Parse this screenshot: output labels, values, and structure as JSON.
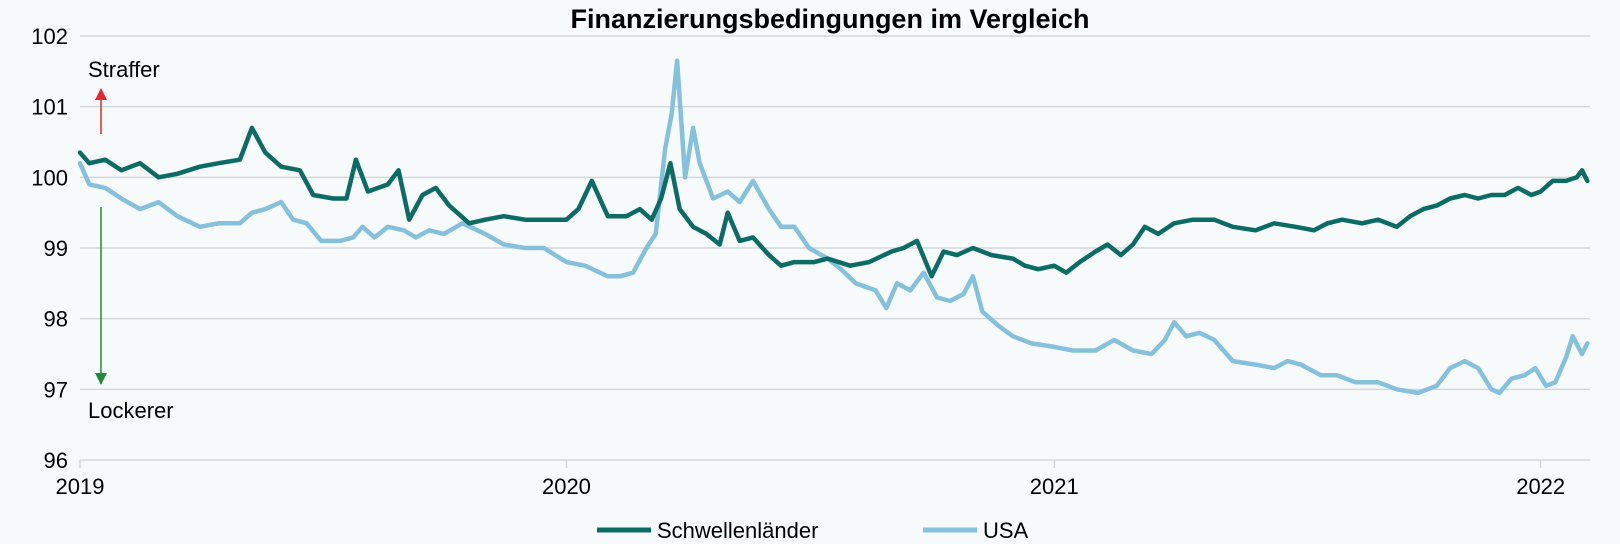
{
  "chart_data": {
    "type": "line",
    "title": "Finanzierungsbedingungen im Vergleich",
    "xlabel": "",
    "ylabel": "",
    "ylim": [
      96,
      102
    ],
    "yticks": [
      96,
      97,
      98,
      99,
      100,
      101,
      102
    ],
    "xlim": [
      "2019-01-01",
      "2022-02-07"
    ],
    "xticks": [
      {
        "date": "2019-01-01",
        "label": "2019"
      },
      {
        "date": "2020-01-01",
        "label": "2020"
      },
      {
        "date": "2021-01-01",
        "label": "2021"
      },
      {
        "date": "2022-01-01",
        "label": "2022"
      }
    ],
    "grid": true,
    "legend_placement": "bottom-center",
    "annotations": [
      {
        "text": "Straffer",
        "direction": "up",
        "color": "#e8262b"
      },
      {
        "text": "Lockerer",
        "direction": "down",
        "color": "#1f8a3c"
      }
    ],
    "series": [
      {
        "name": "Schwellenländer",
        "color": "#0d6b66",
        "points": [
          [
            "2019-01-01",
            100.35
          ],
          [
            "2019-01-08",
            100.2
          ],
          [
            "2019-01-20",
            100.25
          ],
          [
            "2019-02-01",
            100.1
          ],
          [
            "2019-02-15",
            100.2
          ],
          [
            "2019-03-01",
            100.0
          ],
          [
            "2019-03-15",
            100.05
          ],
          [
            "2019-04-01",
            100.15
          ],
          [
            "2019-04-15",
            100.2
          ],
          [
            "2019-05-01",
            100.25
          ],
          [
            "2019-05-10",
            100.7
          ],
          [
            "2019-05-20",
            100.35
          ],
          [
            "2019-06-01",
            100.15
          ],
          [
            "2019-06-15",
            100.1
          ],
          [
            "2019-06-25",
            99.75
          ],
          [
            "2019-07-10",
            99.7
          ],
          [
            "2019-07-20",
            99.7
          ],
          [
            "2019-07-27",
            100.25
          ],
          [
            "2019-08-05",
            99.8
          ],
          [
            "2019-08-20",
            99.9
          ],
          [
            "2019-08-28",
            100.1
          ],
          [
            "2019-09-05",
            99.4
          ],
          [
            "2019-09-15",
            99.75
          ],
          [
            "2019-09-25",
            99.85
          ],
          [
            "2019-10-05",
            99.6
          ],
          [
            "2019-10-20",
            99.35
          ],
          [
            "2019-11-01",
            99.4
          ],
          [
            "2019-11-15",
            99.45
          ],
          [
            "2019-12-01",
            99.4
          ],
          [
            "2019-12-15",
            99.4
          ],
          [
            "2020-01-01",
            99.4
          ],
          [
            "2020-01-10",
            99.55
          ],
          [
            "2020-01-20",
            99.95
          ],
          [
            "2020-02-01",
            99.45
          ],
          [
            "2020-02-15",
            99.45
          ],
          [
            "2020-02-25",
            99.55
          ],
          [
            "2020-03-05",
            99.4
          ],
          [
            "2020-03-12",
            99.7
          ],
          [
            "2020-03-19",
            100.2
          ],
          [
            "2020-03-26",
            99.55
          ],
          [
            "2020-04-05",
            99.3
          ],
          [
            "2020-04-15",
            99.2
          ],
          [
            "2020-04-25",
            99.05
          ],
          [
            "2020-05-01",
            99.5
          ],
          [
            "2020-05-10",
            99.1
          ],
          [
            "2020-05-20",
            99.15
          ],
          [
            "2020-06-01",
            98.9
          ],
          [
            "2020-06-10",
            98.75
          ],
          [
            "2020-06-20",
            98.8
          ],
          [
            "2020-07-05",
            98.8
          ],
          [
            "2020-07-15",
            98.85
          ],
          [
            "2020-08-01",
            98.75
          ],
          [
            "2020-08-15",
            98.8
          ],
          [
            "2020-09-01",
            98.95
          ],
          [
            "2020-09-10",
            99.0
          ],
          [
            "2020-09-20",
            99.1
          ],
          [
            "2020-10-01",
            98.6
          ],
          [
            "2020-10-10",
            98.95
          ],
          [
            "2020-10-20",
            98.9
          ],
          [
            "2020-11-01",
            99.0
          ],
          [
            "2020-11-15",
            98.9
          ],
          [
            "2020-12-01",
            98.85
          ],
          [
            "2020-12-10",
            98.75
          ],
          [
            "2020-12-20",
            98.7
          ],
          [
            "2021-01-01",
            98.75
          ],
          [
            "2021-01-10",
            98.65
          ],
          [
            "2021-01-20",
            98.8
          ],
          [
            "2021-02-01",
            98.95
          ],
          [
            "2021-02-10",
            99.05
          ],
          [
            "2021-02-20",
            98.9
          ],
          [
            "2021-03-01",
            99.05
          ],
          [
            "2021-03-10",
            99.3
          ],
          [
            "2021-03-20",
            99.2
          ],
          [
            "2021-04-01",
            99.35
          ],
          [
            "2021-04-15",
            99.4
          ],
          [
            "2021-05-01",
            99.4
          ],
          [
            "2021-05-15",
            99.3
          ],
          [
            "2021-06-01",
            99.25
          ],
          [
            "2021-06-15",
            99.35
          ],
          [
            "2021-07-01",
            99.3
          ],
          [
            "2021-07-15",
            99.25
          ],
          [
            "2021-07-25",
            99.35
          ],
          [
            "2021-08-05",
            99.4
          ],
          [
            "2021-08-20",
            99.35
          ],
          [
            "2021-09-01",
            99.4
          ],
          [
            "2021-09-15",
            99.3
          ],
          [
            "2021-09-25",
            99.45
          ],
          [
            "2021-10-05",
            99.55
          ],
          [
            "2021-10-15",
            99.6
          ],
          [
            "2021-10-25",
            99.7
          ],
          [
            "2021-11-05",
            99.75
          ],
          [
            "2021-11-15",
            99.7
          ],
          [
            "2021-11-25",
            99.75
          ],
          [
            "2021-12-05",
            99.75
          ],
          [
            "2021-12-15",
            99.85
          ],
          [
            "2021-12-25",
            99.75
          ],
          [
            "2022-01-01",
            99.8
          ],
          [
            "2022-01-10",
            99.95
          ],
          [
            "2022-01-20",
            99.95
          ],
          [
            "2022-01-28",
            100.0
          ],
          [
            "2022-02-01",
            100.1
          ],
          [
            "2022-02-05",
            99.95
          ]
        ]
      },
      {
        "name": "USA",
        "color": "#85c0dc",
        "points": [
          [
            "2019-01-01",
            100.2
          ],
          [
            "2019-01-08",
            99.9
          ],
          [
            "2019-01-20",
            99.85
          ],
          [
            "2019-02-01",
            99.7
          ],
          [
            "2019-02-15",
            99.55
          ],
          [
            "2019-03-01",
            99.65
          ],
          [
            "2019-03-15",
            99.45
          ],
          [
            "2019-04-01",
            99.3
          ],
          [
            "2019-04-15",
            99.35
          ],
          [
            "2019-05-01",
            99.35
          ],
          [
            "2019-05-10",
            99.5
          ],
          [
            "2019-05-20",
            99.55
          ],
          [
            "2019-06-01",
            99.65
          ],
          [
            "2019-06-10",
            99.4
          ],
          [
            "2019-06-20",
            99.35
          ],
          [
            "2019-07-01",
            99.1
          ],
          [
            "2019-07-15",
            99.1
          ],
          [
            "2019-07-25",
            99.15
          ],
          [
            "2019-08-01",
            99.3
          ],
          [
            "2019-08-10",
            99.15
          ],
          [
            "2019-08-20",
            99.3
          ],
          [
            "2019-09-01",
            99.25
          ],
          [
            "2019-09-10",
            99.15
          ],
          [
            "2019-09-20",
            99.25
          ],
          [
            "2019-10-01",
            99.2
          ],
          [
            "2019-10-15",
            99.35
          ],
          [
            "2019-11-01",
            99.2
          ],
          [
            "2019-11-15",
            99.05
          ],
          [
            "2019-12-01",
            99.0
          ],
          [
            "2019-12-15",
            99.0
          ],
          [
            "2020-01-01",
            98.8
          ],
          [
            "2020-01-15",
            98.75
          ],
          [
            "2020-02-01",
            98.6
          ],
          [
            "2020-02-10",
            98.6
          ],
          [
            "2020-02-20",
            98.65
          ],
          [
            "2020-03-01",
            99.0
          ],
          [
            "2020-03-08",
            99.2
          ],
          [
            "2020-03-15",
            100.4
          ],
          [
            "2020-03-20",
            100.9
          ],
          [
            "2020-03-24",
            101.65
          ],
          [
            "2020-03-30",
            100.0
          ],
          [
            "2020-04-05",
            100.7
          ],
          [
            "2020-04-10",
            100.2
          ],
          [
            "2020-04-20",
            99.7
          ],
          [
            "2020-05-01",
            99.8
          ],
          [
            "2020-05-10",
            99.65
          ],
          [
            "2020-05-20",
            99.95
          ],
          [
            "2020-06-01",
            99.55
          ],
          [
            "2020-06-10",
            99.3
          ],
          [
            "2020-06-20",
            99.3
          ],
          [
            "2020-07-01",
            99.0
          ],
          [
            "2020-07-15",
            98.85
          ],
          [
            "2020-07-25",
            98.7
          ],
          [
            "2020-08-05",
            98.5
          ],
          [
            "2020-08-20",
            98.4
          ],
          [
            "2020-08-28",
            98.15
          ],
          [
            "2020-09-05",
            98.5
          ],
          [
            "2020-09-15",
            98.4
          ],
          [
            "2020-09-25",
            98.65
          ],
          [
            "2020-10-05",
            98.3
          ],
          [
            "2020-10-15",
            98.25
          ],
          [
            "2020-10-25",
            98.35
          ],
          [
            "2020-11-01",
            98.6
          ],
          [
            "2020-11-08",
            98.1
          ],
          [
            "2020-11-20",
            97.9
          ],
          [
            "2020-12-01",
            97.75
          ],
          [
            "2020-12-15",
            97.65
          ],
          [
            "2021-01-01",
            97.6
          ],
          [
            "2021-01-15",
            97.55
          ],
          [
            "2021-02-01",
            97.55
          ],
          [
            "2021-02-15",
            97.7
          ],
          [
            "2021-03-01",
            97.55
          ],
          [
            "2021-03-15",
            97.5
          ],
          [
            "2021-03-25",
            97.7
          ],
          [
            "2021-04-01",
            97.95
          ],
          [
            "2021-04-10",
            97.75
          ],
          [
            "2021-04-20",
            97.8
          ],
          [
            "2021-05-01",
            97.7
          ],
          [
            "2021-05-15",
            97.4
          ],
          [
            "2021-06-01",
            97.35
          ],
          [
            "2021-06-15",
            97.3
          ],
          [
            "2021-06-25",
            97.4
          ],
          [
            "2021-07-05",
            97.35
          ],
          [
            "2021-07-20",
            97.2
          ],
          [
            "2021-08-01",
            97.2
          ],
          [
            "2021-08-15",
            97.1
          ],
          [
            "2021-09-01",
            97.1
          ],
          [
            "2021-09-15",
            97.0
          ],
          [
            "2021-10-01",
            96.95
          ],
          [
            "2021-10-15",
            97.05
          ],
          [
            "2021-10-25",
            97.3
          ],
          [
            "2021-11-05",
            97.4
          ],
          [
            "2021-11-15",
            97.3
          ],
          [
            "2021-11-25",
            97.0
          ],
          [
            "2021-12-01",
            96.95
          ],
          [
            "2021-12-10",
            97.15
          ],
          [
            "2021-12-20",
            97.2
          ],
          [
            "2021-12-28",
            97.3
          ],
          [
            "2022-01-05",
            97.05
          ],
          [
            "2022-01-12",
            97.1
          ],
          [
            "2022-01-20",
            97.45
          ],
          [
            "2022-01-25",
            97.75
          ],
          [
            "2022-02-01",
            97.5
          ],
          [
            "2022-02-05",
            97.65
          ]
        ]
      }
    ]
  }
}
